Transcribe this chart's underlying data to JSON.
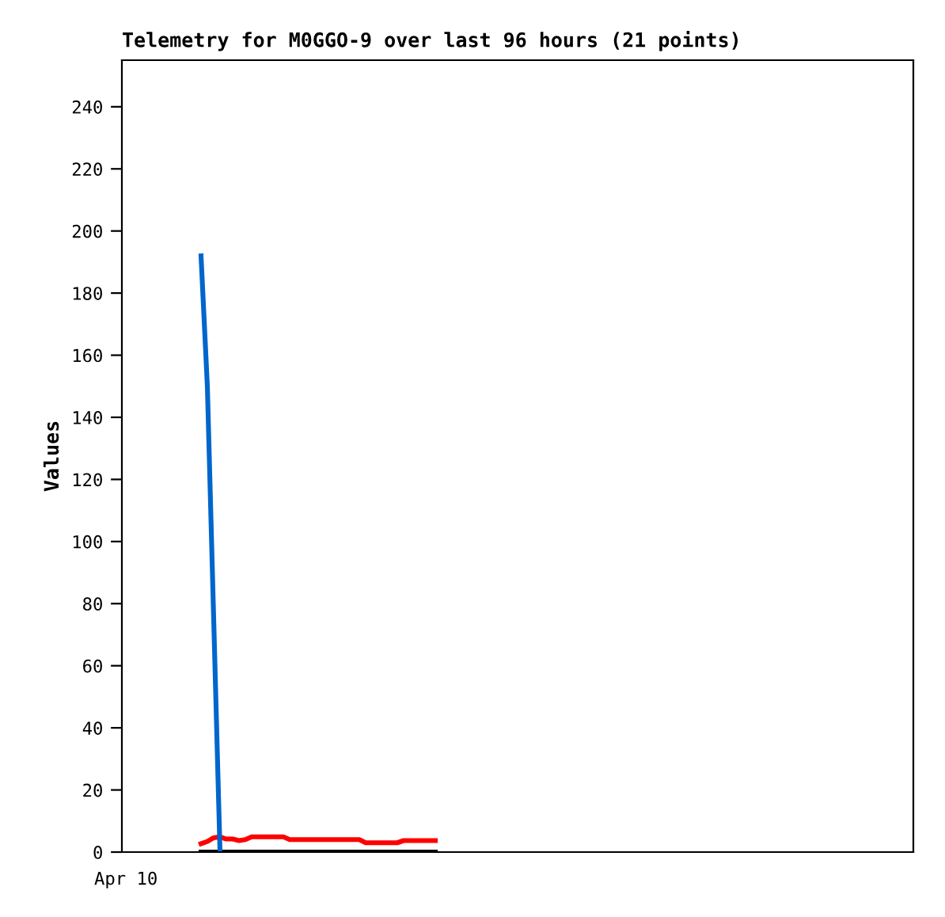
{
  "chart_data": {
    "type": "line",
    "title": "Telemetry for M0GGO-9 over last 96 hours (21 points)",
    "ylabel": "Values",
    "annotations": [
      "Apr 10"
    ],
    "categories": [
      null,
      null,
      null,
      null,
      null,
      null,
      null,
      null,
      null,
      null,
      null,
      null,
      null,
      null,
      null,
      null,
      null,
      null,
      null,
      null,
      null,
      null,
      null,
      null,
      null,
      null,
      null,
      null,
      null,
      null,
      null,
      null,
      null,
      null,
      null,
      null,
      null,
      null,
      null,
      null,
      null,
      null,
      null,
      null,
      null,
      null,
      null,
      null,
      null,
      null,
      null,
      null,
      null,
      null,
      null,
      null,
      null,
      null,
      null,
      null,
      null,
      null,
      null,
      null,
      null,
      null,
      null,
      null,
      null,
      null,
      null,
      null,
      null,
      null,
      null,
      null,
      null,
      null,
      null,
      null,
      null,
      null,
      null,
      null,
      null,
      null,
      null,
      null,
      null,
      null,
      null,
      null,
      null,
      null,
      null,
      null,
      null,
      null,
      null,
      null,
      null,
      null,
      null,
      null,
      null,
      null,
      null,
      null,
      null,
      null,
      null,
      null,
      null,
      null,
      null,
      null,
      null,
      null,
      null,
      null,
      null,
      null,
      null,
      null,
      null
    ],
    "ylim": [
      0,
      255
    ],
    "yticks": [
      0,
      20,
      40,
      60,
      80,
      100,
      120,
      140,
      160,
      180,
      200,
      220,
      240
    ],
    "grid": false,
    "legend": false,
    "marker": "none",
    "line_style": "solid",
    "tick_labels": "y",
    "series": [
      {
        "color": "#000000",
        "values": [
          null,
          null,
          null,
          null,
          null,
          null,
          null,
          null,
          null,
          null,
          null,
          null,
          0,
          0,
          0,
          0,
          0,
          0,
          0,
          0,
          0,
          0,
          0,
          0,
          0,
          0,
          0,
          0,
          0,
          0,
          0,
          0,
          0,
          0,
          0,
          0,
          0,
          0,
          0,
          0,
          0,
          0,
          0,
          0,
          0,
          0,
          0,
          0,
          0,
          0,
          null,
          null,
          null,
          null,
          null,
          null,
          null,
          null,
          null,
          null,
          null,
          null,
          null,
          null,
          null,
          null,
          null,
          null,
          null,
          null,
          null,
          null,
          null,
          null,
          null,
          null,
          null,
          null,
          null,
          null,
          null,
          null,
          null,
          null,
          null,
          null,
          null,
          null,
          null,
          null,
          null,
          null,
          null,
          null,
          null,
          null,
          null,
          null,
          null,
          null,
          null,
          null,
          null,
          null,
          null,
          null,
          null,
          null,
          null,
          null,
          null,
          null,
          null,
          null,
          null,
          null,
          null,
          null,
          null,
          null,
          null,
          null,
          null,
          null,
          null
        ]
      },
      {
        "color": "#ff0000",
        "values": [
          null,
          null,
          null,
          null,
          null,
          null,
          null,
          null,
          null,
          null,
          null,
          null,
          2.7,
          3.4,
          4.6,
          4.9,
          4.2,
          4.2,
          3.7,
          4.0,
          4.9,
          4.9,
          4.9,
          4.9,
          4.9,
          4.9,
          4.0,
          4.0,
          4.0,
          4.0,
          4.0,
          4.0,
          4.0,
          4.0,
          4.0,
          4.0,
          4.0,
          4.0,
          3.0,
          3.0,
          3.0,
          3.0,
          3.0,
          3.0,
          3.7,
          3.7,
          3.7,
          3.7,
          3.7,
          3.7,
          null,
          null,
          null,
          null,
          null,
          null,
          null,
          null,
          null,
          null,
          null,
          null,
          null,
          null,
          null,
          null,
          null,
          null,
          null,
          null,
          null,
          null,
          null,
          null,
          null,
          null,
          null,
          null,
          null,
          null,
          null,
          null,
          null,
          null,
          null,
          null,
          null,
          null,
          null,
          null,
          null,
          null,
          null,
          null,
          null,
          null,
          null,
          null,
          null,
          null,
          null,
          null,
          null,
          null,
          null,
          null,
          null,
          null,
          null,
          null,
          null,
          null,
          null,
          null,
          null,
          null,
          null,
          null,
          null,
          null,
          null,
          null,
          null,
          null,
          null
        ]
      },
      {
        "color": "#0066cc",
        "values": [
          null,
          null,
          null,
          null,
          null,
          null,
          null,
          null,
          null,
          null,
          null,
          null,
          192,
          150,
          75,
          0,
          null,
          null,
          null,
          null,
          null,
          null,
          null,
          null,
          null,
          null,
          null,
          null,
          null,
          null,
          null,
          null,
          null,
          null,
          null,
          null,
          null,
          null,
          null,
          null,
          null,
          null,
          null,
          null,
          null,
          null,
          null,
          null,
          null,
          null,
          null,
          null,
          null,
          null,
          null,
          null,
          null,
          null,
          null,
          null,
          null,
          null,
          null,
          null,
          null,
          null,
          null,
          null,
          null,
          null,
          null,
          null,
          null,
          null,
          null,
          null,
          null,
          null,
          null,
          null,
          null,
          null,
          null,
          null,
          null,
          null,
          null,
          null,
          null,
          null,
          null,
          null,
          null,
          null,
          null,
          null,
          null,
          null,
          null,
          null,
          null,
          null,
          null,
          null,
          null,
          null,
          null,
          null,
          null,
          null,
          null,
          null,
          null,
          null,
          null,
          null,
          null,
          null,
          null,
          null,
          null,
          null,
          null,
          null,
          null
        ]
      }
    ]
  }
}
